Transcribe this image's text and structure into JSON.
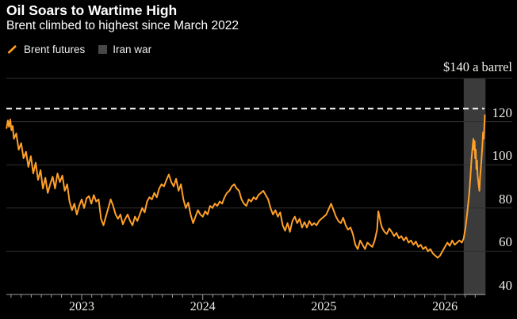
{
  "header": {
    "title": "Oil Soars to Wartime High",
    "subtitle": "Brent climbed to highest since March 2022"
  },
  "legend": [
    {
      "label": "Brent futures",
      "swatch": "orange-slash"
    },
    {
      "label": "Iran war",
      "swatch": "gray-square"
    }
  ],
  "colors": {
    "background": "#000000",
    "line": "#FFA028",
    "band": "#3B3B3B",
    "grid": "#2E2E2E",
    "axis": "#9B9B9B",
    "reference": "#FFFFFF",
    "legend_square": "#474747",
    "title_text": "#FFFFFF",
    "tick_text": "#EDECE8"
  },
  "chart_data": {
    "type": "line",
    "title": "Oil Soars to Wartime High",
    "subtitle": "Brent climbed to highest since March 2022",
    "grid": "horizontal",
    "legend_position": "top-left",
    "x": {
      "range": [
        2022.375,
        2026.335
      ],
      "tick_years": [
        2023,
        2024,
        2025,
        2026
      ],
      "labels": [
        "2023",
        "2024",
        "2025",
        "2026"
      ],
      "minor_ticks": "monthly"
    },
    "y": {
      "range": [
        40,
        140
      ],
      "unit_label": "$140 a barrel",
      "gridline_values": [
        140,
        120,
        100,
        80,
        60,
        40
      ],
      "labeled_ticks": [
        {
          "value": 120,
          "label": "120"
        },
        {
          "value": 100,
          "label": "100"
        },
        {
          "value": 80,
          "label": "80"
        },
        {
          "value": 60,
          "label": "60"
        },
        {
          "value": 40,
          "label": "40"
        }
      ]
    },
    "reference_line": {
      "value": 126,
      "style": "dashed"
    },
    "highlight_band": {
      "label": "Iran war",
      "x_start": 2026.155,
      "x_end": 2026.335
    },
    "series": [
      {
        "name": "Brent futures",
        "unit": "USD a barrel",
        "points": [
          [
            2022.38,
            117
          ],
          [
            2022.39,
            120.5
          ],
          [
            2022.4,
            117.5
          ],
          [
            2022.41,
            121
          ],
          [
            2022.42,
            116
          ],
          [
            2022.43,
            118
          ],
          [
            2022.44,
            112
          ],
          [
            2022.46,
            114.5
          ],
          [
            2022.48,
            107
          ],
          [
            2022.5,
            110
          ],
          [
            2022.52,
            103
          ],
          [
            2022.54,
            106
          ],
          [
            2022.56,
            99
          ],
          [
            2022.58,
            104
          ],
          [
            2022.6,
            96
          ],
          [
            2022.62,
            101
          ],
          [
            2022.64,
            93
          ],
          [
            2022.66,
            97.5
          ],
          [
            2022.68,
            89
          ],
          [
            2022.7,
            94
          ],
          [
            2022.72,
            87
          ],
          [
            2022.74,
            91
          ],
          [
            2022.76,
            94.5
          ],
          [
            2022.78,
            89
          ],
          [
            2022.8,
            96
          ],
          [
            2022.82,
            92
          ],
          [
            2022.84,
            95
          ],
          [
            2022.86,
            88
          ],
          [
            2022.88,
            91
          ],
          [
            2022.9,
            83
          ],
          [
            2022.92,
            79
          ],
          [
            2022.94,
            82
          ],
          [
            2022.96,
            77
          ],
          [
            2022.98,
            81
          ],
          [
            2023.0,
            84
          ],
          [
            2023.02,
            80
          ],
          [
            2023.04,
            84.5
          ],
          [
            2023.06,
            85.5
          ],
          [
            2023.08,
            82
          ],
          [
            2023.1,
            86
          ],
          [
            2023.12,
            83
          ],
          [
            2023.14,
            84
          ],
          [
            2023.16,
            75
          ],
          [
            2023.18,
            72
          ],
          [
            2023.2,
            76
          ],
          [
            2023.22,
            80
          ],
          [
            2023.24,
            84
          ],
          [
            2023.26,
            81
          ],
          [
            2023.28,
            77
          ],
          [
            2023.3,
            75
          ],
          [
            2023.32,
            77
          ],
          [
            2023.34,
            72.5
          ],
          [
            2023.36,
            75
          ],
          [
            2023.38,
            77
          ],
          [
            2023.4,
            74
          ],
          [
            2023.42,
            72
          ],
          [
            2023.44,
            76
          ],
          [
            2023.46,
            74
          ],
          [
            2023.48,
            77
          ],
          [
            2023.5,
            80
          ],
          [
            2023.52,
            78
          ],
          [
            2023.54,
            83
          ],
          [
            2023.56,
            85
          ],
          [
            2023.58,
            84
          ],
          [
            2023.6,
            87
          ],
          [
            2023.62,
            85
          ],
          [
            2023.64,
            89
          ],
          [
            2023.66,
            91
          ],
          [
            2023.68,
            90
          ],
          [
            2023.7,
            93
          ],
          [
            2023.72,
            95.5
          ],
          [
            2023.74,
            92
          ],
          [
            2023.76,
            90
          ],
          [
            2023.78,
            93.5
          ],
          [
            2023.8,
            88
          ],
          [
            2023.82,
            91
          ],
          [
            2023.84,
            84
          ],
          [
            2023.86,
            80
          ],
          [
            2023.88,
            82.5
          ],
          [
            2023.9,
            77
          ],
          [
            2023.92,
            73
          ],
          [
            2023.94,
            76
          ],
          [
            2023.96,
            79
          ],
          [
            2023.98,
            77
          ],
          [
            2024.0,
            76
          ],
          [
            2024.02,
            78.5
          ],
          [
            2024.04,
            77
          ],
          [
            2024.06,
            81
          ],
          [
            2024.08,
            80
          ],
          [
            2024.1,
            82
          ],
          [
            2024.12,
            81
          ],
          [
            2024.14,
            83
          ],
          [
            2024.16,
            82
          ],
          [
            2024.18,
            85
          ],
          [
            2024.2,
            87
          ],
          [
            2024.22,
            88
          ],
          [
            2024.24,
            90
          ],
          [
            2024.26,
            91
          ],
          [
            2024.28,
            89
          ],
          [
            2024.3,
            88
          ],
          [
            2024.32,
            84
          ],
          [
            2024.34,
            82
          ],
          [
            2024.36,
            81
          ],
          [
            2024.38,
            84
          ],
          [
            2024.4,
            83
          ],
          [
            2024.42,
            85
          ],
          [
            2024.44,
            84
          ],
          [
            2024.46,
            86
          ],
          [
            2024.48,
            87
          ],
          [
            2024.5,
            88
          ],
          [
            2024.52,
            86
          ],
          [
            2024.54,
            84
          ],
          [
            2024.56,
            80
          ],
          [
            2024.58,
            77
          ],
          [
            2024.6,
            79
          ],
          [
            2024.62,
            76
          ],
          [
            2024.64,
            78
          ],
          [
            2024.66,
            72
          ],
          [
            2024.68,
            69.5
          ],
          [
            2024.7,
            73
          ],
          [
            2024.72,
            69
          ],
          [
            2024.74,
            74
          ],
          [
            2024.76,
            76
          ],
          [
            2024.78,
            73
          ],
          [
            2024.8,
            75
          ],
          [
            2024.82,
            71
          ],
          [
            2024.84,
            73.5
          ],
          [
            2024.86,
            71
          ],
          [
            2024.88,
            74
          ],
          [
            2024.9,
            72
          ],
          [
            2024.92,
            73
          ],
          [
            2024.94,
            72
          ],
          [
            2024.96,
            74
          ],
          [
            2024.98,
            75
          ],
          [
            2025.0,
            76
          ],
          [
            2025.02,
            77
          ],
          [
            2025.04,
            79.5
          ],
          [
            2025.06,
            82
          ],
          [
            2025.08,
            79
          ],
          [
            2025.1,
            76
          ],
          [
            2025.12,
            74
          ],
          [
            2025.14,
            73
          ],
          [
            2025.16,
            75.5
          ],
          [
            2025.18,
            72
          ],
          [
            2025.2,
            70
          ],
          [
            2025.22,
            71
          ],
          [
            2025.24,
            68
          ],
          [
            2025.26,
            63
          ],
          [
            2025.28,
            61
          ],
          [
            2025.3,
            65
          ],
          [
            2025.32,
            63
          ],
          [
            2025.34,
            61
          ],
          [
            2025.36,
            64
          ],
          [
            2025.38,
            63
          ],
          [
            2025.4,
            62
          ],
          [
            2025.42,
            65
          ],
          [
            2025.44,
            70
          ],
          [
            2025.45,
            78.5
          ],
          [
            2025.46,
            76
          ],
          [
            2025.47,
            73
          ],
          [
            2025.48,
            71
          ],
          [
            2025.5,
            69
          ],
          [
            2025.52,
            68
          ],
          [
            2025.54,
            70.5
          ],
          [
            2025.56,
            69
          ],
          [
            2025.58,
            67
          ],
          [
            2025.6,
            68.5
          ],
          [
            2025.62,
            66
          ],
          [
            2025.64,
            67
          ],
          [
            2025.66,
            65
          ],
          [
            2025.68,
            66.5
          ],
          [
            2025.7,
            64
          ],
          [
            2025.72,
            65
          ],
          [
            2025.74,
            63
          ],
          [
            2025.76,
            64.5
          ],
          [
            2025.78,
            62
          ],
          [
            2025.8,
            63
          ],
          [
            2025.82,
            61
          ],
          [
            2025.84,
            62
          ],
          [
            2025.86,
            60
          ],
          [
            2025.88,
            61
          ],
          [
            2025.9,
            59
          ],
          [
            2025.92,
            58
          ],
          [
            2025.94,
            57
          ],
          [
            2025.96,
            58
          ],
          [
            2025.98,
            60
          ],
          [
            2026.0,
            62
          ],
          [
            2026.02,
            64
          ],
          [
            2026.04,
            62.5
          ],
          [
            2026.06,
            65
          ],
          [
            2026.08,
            63
          ],
          [
            2026.1,
            64
          ],
          [
            2026.12,
            65
          ],
          [
            2026.14,
            64
          ],
          [
            2026.155,
            66
          ],
          [
            2026.17,
            71
          ],
          [
            2026.185,
            78
          ],
          [
            2026.2,
            86
          ],
          [
            2026.21,
            94
          ],
          [
            2026.22,
            103
          ],
          [
            2026.23,
            109
          ],
          [
            2026.235,
            112
          ],
          [
            2026.24,
            107
          ],
          [
            2026.245,
            111
          ],
          [
            2026.25,
            103
          ],
          [
            2026.255,
            107
          ],
          [
            2026.26,
            98
          ],
          [
            2026.265,
            102
          ],
          [
            2026.27,
            95
          ],
          [
            2026.28,
            90
          ],
          [
            2026.285,
            88
          ],
          [
            2026.29,
            94
          ],
          [
            2026.3,
            101
          ],
          [
            2026.31,
            109
          ],
          [
            2026.315,
            115
          ],
          [
            2026.32,
            112
          ],
          [
            2026.33,
            123
          ]
        ]
      }
    ]
  }
}
